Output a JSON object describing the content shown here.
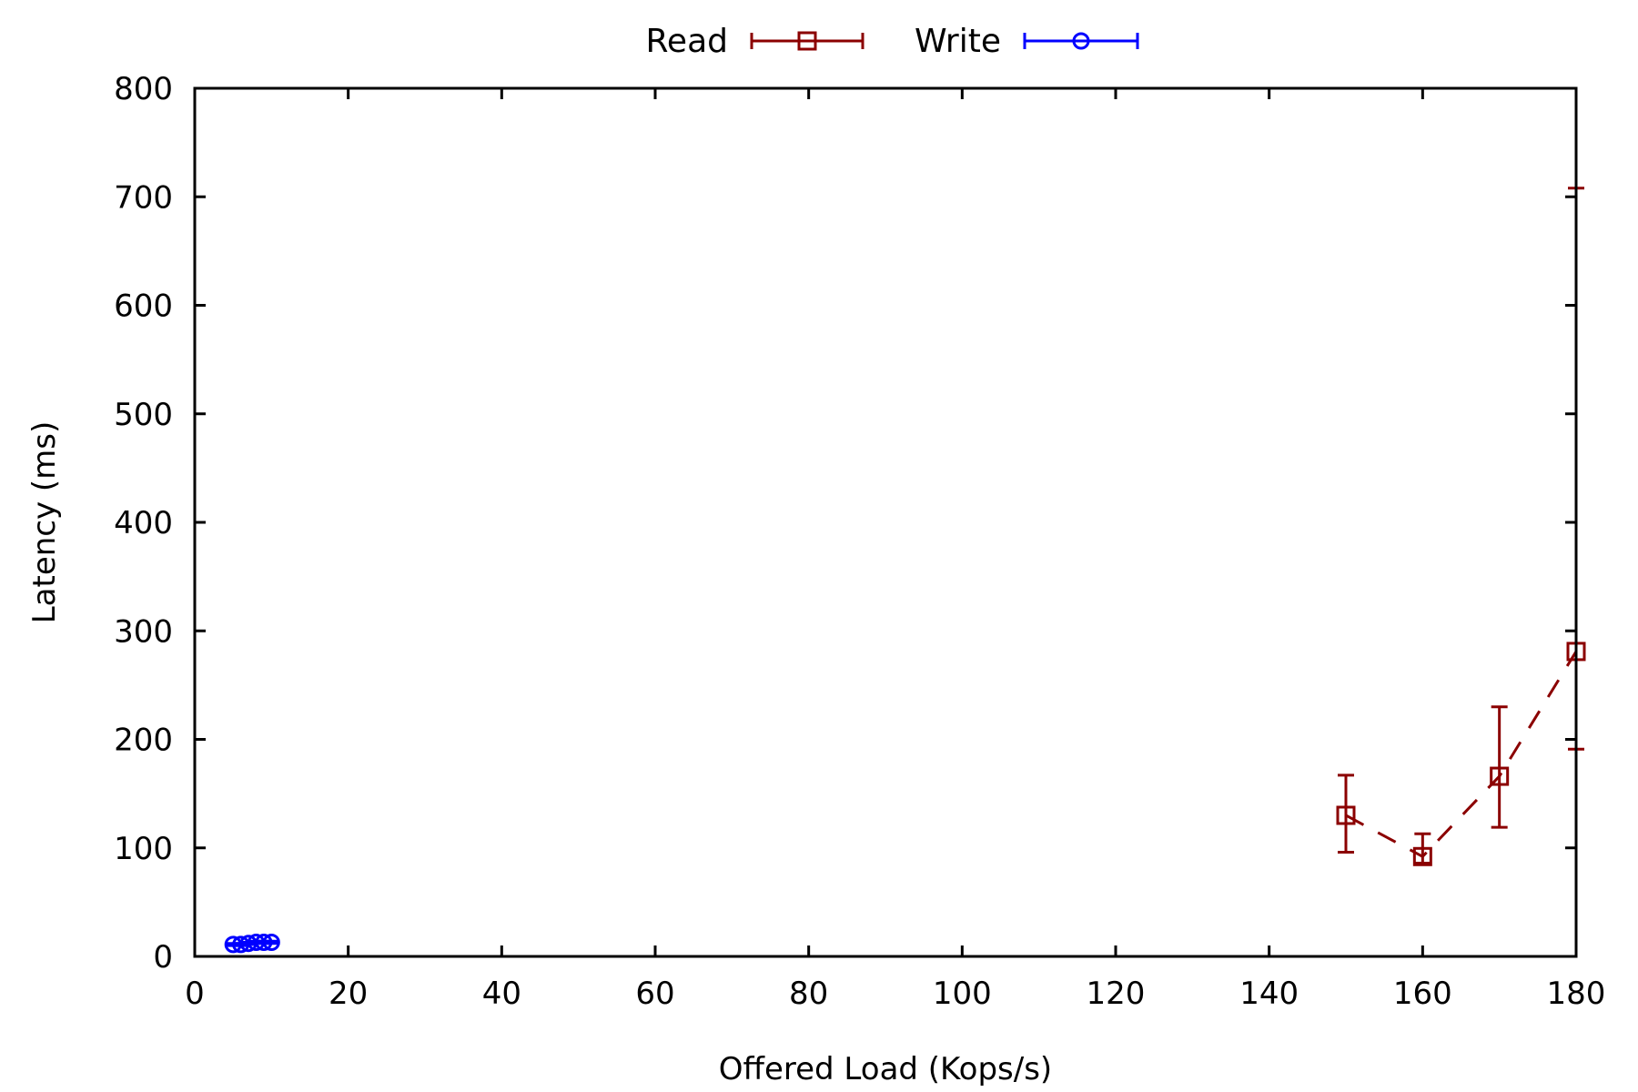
{
  "chart_data": {
    "type": "line",
    "title": "",
    "xlabel": "Offered Load (Kops/s)",
    "ylabel": "Latency (ms)",
    "xlim": [
      0,
      180
    ],
    "ylim": [
      0,
      800
    ],
    "xticks": [
      0,
      20,
      40,
      60,
      80,
      100,
      120,
      140,
      160,
      180
    ],
    "yticks": [
      0,
      100,
      200,
      300,
      400,
      500,
      600,
      700,
      800
    ],
    "grid": false,
    "legend": {
      "placement": "top-center",
      "orientation": "horizontal"
    },
    "series": [
      {
        "name": "Read",
        "color": "#8b0000",
        "marker": "square-open",
        "line_style": "dashed",
        "points": [
          {
            "x": 150,
            "y": 130,
            "ylow": 96,
            "yhigh": 167
          },
          {
            "x": 160,
            "y": 92,
            "ylow": 86,
            "yhigh": 113
          },
          {
            "x": 170,
            "y": 166,
            "ylow": 119,
            "yhigh": 230
          },
          {
            "x": 180,
            "y": 281,
            "ylow": 191,
            "yhigh": 708
          }
        ]
      },
      {
        "name": "Write",
        "color": "#0000ff",
        "marker": "circle-open",
        "line_style": "solid",
        "points": [
          {
            "x": 5,
            "y": 11,
            "ylow": 10,
            "yhigh": 12
          },
          {
            "x": 6,
            "y": 11,
            "ylow": 10,
            "yhigh": 12
          },
          {
            "x": 7,
            "y": 12,
            "ylow": 11,
            "yhigh": 13
          },
          {
            "x": 8,
            "y": 13,
            "ylow": 12,
            "yhigh": 14
          },
          {
            "x": 9,
            "y": 13,
            "ylow": 12,
            "yhigh": 14
          },
          {
            "x": 10,
            "y": 13,
            "ylow": 12,
            "yhigh": 14
          }
        ]
      }
    ]
  }
}
